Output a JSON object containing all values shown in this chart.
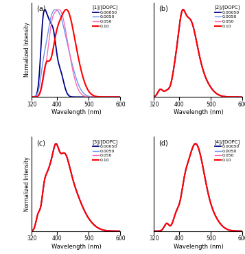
{
  "colors": [
    "#00008B",
    "#6495ED",
    "#FF69B4",
    "#FF0000"
  ],
  "lws": [
    1.3,
    1.0,
    1.0,
    1.5
  ],
  "legend_labels": [
    "0.00050",
    "0.0050",
    "0.050",
    "0.10"
  ],
  "subplot_labels": [
    "(a)",
    "(b)",
    "(c)",
    "(d)"
  ],
  "legend_titles": [
    "[1]/[DOPC]",
    "[2]/[DOPC]",
    "[3]/[DOPC]",
    "[4]/[DOPC]"
  ],
  "xlabel": "Wavelength (nm)",
  "ylabel": "Normalized Intensity",
  "xlim": [
    320,
    600
  ],
  "ylim": [
    0,
    1.08
  ],
  "xticks": [
    320,
    400,
    500,
    600
  ]
}
